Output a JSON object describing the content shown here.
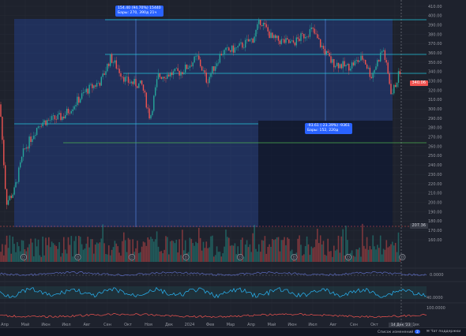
{
  "y_axis": {
    "labels": [
      "410.00",
      "400.00",
      "390.00",
      "380.00",
      "370.00",
      "360.00",
      "350.00",
      "340.00",
      "330.00",
      "320.00",
      "310.00",
      "300.00",
      "290.00",
      "280.00",
      "270.00",
      "260.00",
      "250.00",
      "240.00",
      "230.00",
      "220.00",
      "210.00",
      "200.00",
      "190.00",
      "180.00",
      "170.00",
      "160.00"
    ],
    "current_price": "340.06",
    "level_price": "207.36"
  },
  "x_axis": {
    "labels": [
      "Апр",
      "Май",
      "Июн",
      "Июл",
      "Авг",
      "Сен",
      "Окт",
      "Ноя",
      "Дек",
      "2024",
      "Фев",
      "Мар",
      "Апр",
      "Май",
      "Июн",
      "Июл",
      "Авг",
      "Сен",
      "Окт",
      "Ноя",
      "Дек"
    ],
    "crosshair_date": "14 Дек '23"
  },
  "measure_top": {
    "line1": "154.40 (94.70%) 15440",
    "line2": "Бары: 270, 390д 21ч"
  },
  "measure_bottom": {
    "line1": "-93.61 (-23.39%) -9361",
    "line2": "Бары: 152, 220д"
  },
  "events": [
    "D",
    "D",
    "D",
    "D",
    "D",
    "D",
    "D",
    "D"
  ],
  "indicators": {
    "ind1_value": "0.0000",
    "ind2_value": "40.0000",
    "ind3_value": "100.0000"
  },
  "status_bar": {
    "left_text": "Список изменений",
    "badge": "2",
    "right_text": "Чат поддержки"
  },
  "colors": {
    "up": "#26a69a",
    "down": "#ef5350",
    "measure_fill": "#2962ff",
    "measure_down_fill": "#131722",
    "hline_top": "#26c6da",
    "hline_green": "#4caf50",
    "hline_red": "#ef5350"
  }
}
